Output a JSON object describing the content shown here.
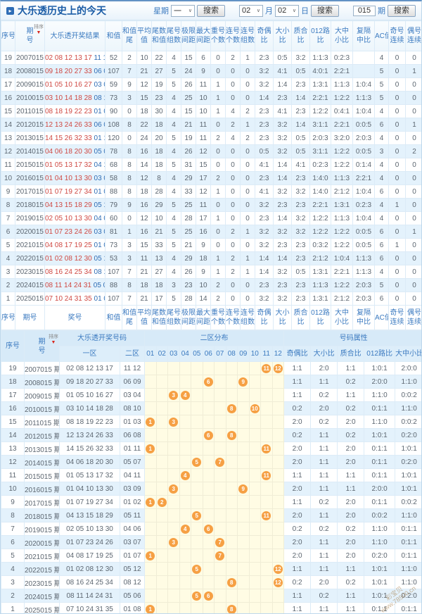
{
  "header": {
    "title": "大乐透历史上的今天",
    "week_label": "星期",
    "week_value": "一",
    "month_value": "02",
    "month_label": "月",
    "day_value": "02",
    "day_label": "日",
    "issue_value": "015",
    "issue_label": "期",
    "search_label": "搜索"
  },
  "sort_label": "排序",
  "table1": {
    "columns": [
      [
        "序号",
        ""
      ],
      [
        "期",
        "号"
      ],
      [
        "大乐透开奖结果",
        ""
      ],
      [
        "和值",
        ""
      ],
      [
        "和值",
        "尾"
      ],
      [
        "平均",
        "值"
      ],
      [
        "尾数",
        "和值"
      ],
      [
        "尾号",
        "组数"
      ],
      [
        "极限",
        "间距"
      ],
      [
        "最大",
        "间距"
      ],
      [
        "重号",
        "个数"
      ],
      [
        "连号",
        "个数"
      ],
      [
        "连号",
        "组数"
      ],
      [
        "奇偶",
        "比"
      ],
      [
        "大小",
        "比"
      ],
      [
        "质合",
        "比"
      ],
      [
        "012路",
        "比"
      ],
      [
        "大中",
        "小比"
      ],
      [
        "复隔",
        "中比"
      ],
      [
        "AC值",
        ""
      ],
      [
        "奇号",
        "连续"
      ],
      [
        "偶号",
        "连续"
      ]
    ],
    "footer_columns": [
      [
        "序号",
        ""
      ],
      [
        "期号",
        ""
      ],
      [
        "奖号",
        ""
      ],
      [
        "和值",
        ""
      ],
      [
        "和值",
        "尾"
      ],
      [
        "平均",
        "值"
      ],
      [
        "尾数",
        "和值"
      ],
      [
        "尾号",
        "组数"
      ],
      [
        "极限",
        "间距"
      ],
      [
        "最大",
        "间距"
      ],
      [
        "重号",
        "个数"
      ],
      [
        "连号",
        "个数"
      ],
      [
        "连号",
        "组数"
      ],
      [
        "奇偶",
        "比"
      ],
      [
        "大小",
        "比"
      ],
      [
        "质合",
        "比"
      ],
      [
        "012路",
        "比"
      ],
      [
        "大中",
        "小比"
      ],
      [
        "复隔",
        "中比"
      ],
      [
        "AC值",
        ""
      ],
      [
        "奇号",
        "连续"
      ],
      [
        "偶号",
        "连续"
      ]
    ],
    "rows": [
      {
        "seq": "19",
        "period": "2007015",
        "front": "02 08 12 13 17",
        "back": "11 12",
        "vals": [
          "52",
          "2",
          "10",
          "22",
          "4",
          "15",
          "6",
          "0",
          "2",
          "1",
          "2:3",
          "0:5",
          "3:2",
          "1:1:3",
          "0:2:3",
          "",
          "4",
          "0",
          "0"
        ]
      },
      {
        "seq": "18",
        "period": "2008015",
        "front": "09 18 20 27 33",
        "back": "06 09",
        "vals": [
          "107",
          "7",
          "21",
          "27",
          "5",
          "24",
          "9",
          "0",
          "0",
          "0",
          "3:2",
          "4:1",
          "0:5",
          "4:0:1",
          "2:2:1",
          "",
          "5",
          "0",
          "1"
        ]
      },
      {
        "seq": "17",
        "period": "2009015",
        "front": "01 05 10 16 27",
        "back": "03 04",
        "vals": [
          "59",
          "9",
          "12",
          "19",
          "5",
          "26",
          "11",
          "1",
          "0",
          "0",
          "3:2",
          "1:4",
          "2:3",
          "1:3:1",
          "1:1:3",
          "1:0:4",
          "5",
          "0",
          "0"
        ]
      },
      {
        "seq": "16",
        "period": "2010015",
        "front": "03 10 14 18 28",
        "back": "08 10",
        "vals": [
          "73",
          "3",
          "15",
          "23",
          "4",
          "25",
          "10",
          "1",
          "0",
          "0",
          "1:4",
          "2:3",
          "1:4",
          "2:2:1",
          "1:2:2",
          "1:1:3",
          "5",
          "0",
          "0"
        ]
      },
      {
        "seq": "15",
        "period": "2011015",
        "front": "08 18 19 22 23",
        "back": "01 03",
        "vals": [
          "90",
          "0",
          "18",
          "30",
          "4",
          "15",
          "10",
          "1",
          "4",
          "2",
          "2:3",
          "4:1",
          "2:3",
          "1:2:2",
          "0:4:1",
          "1:0:4",
          "4",
          "0",
          "0"
        ]
      },
      {
        "seq": "14",
        "period": "2012015",
        "front": "12 13 24 26 33",
        "back": "06 08",
        "vals": [
          "108",
          "8",
          "22",
          "18",
          "4",
          "21",
          "11",
          "0",
          "2",
          "1",
          "2:3",
          "3:2",
          "1:4",
          "3:1:1",
          "2:2:1",
          "0:0:5",
          "6",
          "0",
          "1"
        ]
      },
      {
        "seq": "13",
        "period": "2013015",
        "front": "14 15 26 32 33",
        "back": "01 11",
        "vals": [
          "120",
          "0",
          "24",
          "20",
          "5",
          "19",
          "11",
          "2",
          "4",
          "2",
          "2:3",
          "3:2",
          "0:5",
          "2:0:3",
          "3:2:0",
          "2:0:3",
          "4",
          "0",
          "0"
        ]
      },
      {
        "seq": "12",
        "period": "2014015",
        "front": "04 06 18 20 30",
        "back": "05 07",
        "vals": [
          "78",
          "8",
          "16",
          "18",
          "4",
          "26",
          "12",
          "0",
          "0",
          "0",
          "0:5",
          "3:2",
          "0:5",
          "3:1:1",
          "1:2:2",
          "0:0:5",
          "3",
          "0",
          "2"
        ]
      },
      {
        "seq": "11",
        "period": "2015015",
        "front": "01 05 13 17 32",
        "back": "04 11",
        "vals": [
          "68",
          "8",
          "14",
          "18",
          "5",
          "31",
          "15",
          "0",
          "0",
          "0",
          "4:1",
          "1:4",
          "4:1",
          "0:2:3",
          "1:2:2",
          "0:1:4",
          "4",
          "0",
          "0"
        ]
      },
      {
        "seq": "10",
        "period": "2016015",
        "front": "01 04 10 13 30",
        "back": "03 09",
        "vals": [
          "58",
          "8",
          "12",
          "8",
          "4",
          "29",
          "17",
          "2",
          "0",
          "0",
          "2:3",
          "1:4",
          "2:3",
          "1:4:0",
          "1:1:3",
          "2:2:1",
          "4",
          "0",
          "0"
        ]
      },
      {
        "seq": "9",
        "period": "2017015",
        "front": "01 07 19 27 34",
        "back": "01 02",
        "vals": [
          "88",
          "8",
          "18",
          "28",
          "4",
          "33",
          "12",
          "1",
          "0",
          "0",
          "4:1",
          "3:2",
          "3:2",
          "1:4:0",
          "2:1:2",
          "1:0:4",
          "6",
          "0",
          "0"
        ]
      },
      {
        "seq": "8",
        "period": "2018015",
        "front": "04 13 15 18 29",
        "back": "05 11",
        "vals": [
          "79",
          "9",
          "16",
          "29",
          "5",
          "25",
          "11",
          "0",
          "0",
          "0",
          "3:2",
          "2:3",
          "2:3",
          "2:2:1",
          "1:3:1",
          "0:2:3",
          "4",
          "1",
          "0"
        ]
      },
      {
        "seq": "7",
        "period": "2019015",
        "front": "02 05 10 13 30",
        "back": "04 06",
        "vals": [
          "60",
          "0",
          "12",
          "10",
          "4",
          "28",
          "17",
          "1",
          "0",
          "0",
          "2:3",
          "1:4",
          "3:2",
          "1:2:2",
          "1:1:3",
          "1:0:4",
          "4",
          "0",
          "0"
        ]
      },
      {
        "seq": "6",
        "period": "2020015",
        "front": "01 07 23 24 26",
        "back": "03 07",
        "vals": [
          "81",
          "1",
          "16",
          "21",
          "5",
          "25",
          "16",
          "0",
          "2",
          "1",
          "3:2",
          "3:2",
          "3:2",
          "1:2:2",
          "1:2:2",
          "0:0:5",
          "6",
          "0",
          "1"
        ]
      },
      {
        "seq": "5",
        "period": "2021015",
        "front": "04 08 17 19 25",
        "back": "01 07",
        "vals": [
          "73",
          "3",
          "15",
          "33",
          "5",
          "21",
          "9",
          "0",
          "0",
          "0",
          "3:2",
          "2:3",
          "2:3",
          "0:3:2",
          "1:2:2",
          "0:0:5",
          "6",
          "1",
          "0"
        ]
      },
      {
        "seq": "4",
        "period": "2022015",
        "front": "01 02 08 12 30",
        "back": "05 12",
        "vals": [
          "53",
          "3",
          "11",
          "13",
          "4",
          "29",
          "18",
          "1",
          "2",
          "1",
          "1:4",
          "1:4",
          "2:3",
          "2:1:2",
          "1:0:4",
          "1:1:3",
          "6",
          "0",
          "0"
        ]
      },
      {
        "seq": "3",
        "period": "2023015",
        "front": "08 16 24 25 34",
        "back": "08 12",
        "vals": [
          "107",
          "7",
          "21",
          "27",
          "4",
          "26",
          "9",
          "1",
          "2",
          "1",
          "1:4",
          "3:2",
          "0:5",
          "1:3:1",
          "2:2:1",
          "1:1:3",
          "4",
          "0",
          "0"
        ]
      },
      {
        "seq": "2",
        "period": "2024015",
        "front": "08 11 14 24 31",
        "back": "05 06",
        "vals": [
          "88",
          "8",
          "18",
          "18",
          "3",
          "23",
          "10",
          "2",
          "0",
          "0",
          "2:3",
          "2:3",
          "2:3",
          "1:1:3",
          "1:2:2",
          "2:0:3",
          "5",
          "0",
          "0"
        ]
      },
      {
        "seq": "1",
        "period": "2025015",
        "front": "07 10 24 31 35",
        "back": "01 08",
        "vals": [
          "107",
          "7",
          "21",
          "17",
          "5",
          "28",
          "14",
          "2",
          "0",
          "0",
          "3:2",
          "3:2",
          "2:3",
          "1:3:1",
          "2:1:2",
          "2:0:3",
          "6",
          "0",
          "0"
        ]
      }
    ]
  },
  "table2": {
    "group_headers": {
      "seq": "序号",
      "period": "期号",
      "result": "大乐透开奖号码",
      "dist": "二区分布",
      "props": "号码属性"
    },
    "zone1_label": "一区",
    "zone2_label": "二区",
    "dist_labels": [
      "01",
      "02",
      "03",
      "04",
      "05",
      "06",
      "07",
      "08",
      "09",
      "10",
      "11",
      "12"
    ],
    "prop_labels": [
      "奇偶比",
      "大小比",
      "质合比",
      "012路比",
      "大中小比"
    ],
    "period_suffix": "期",
    "rows": [
      {
        "seq": "19",
        "period": "2007015",
        "zone1": "02 08 12 13 17",
        "zone2": "11 12",
        "balls": [
          11,
          12
        ],
        "props": [
          "1:1",
          "2:0",
          "1:1",
          "1:0:1",
          "2:0:0"
        ]
      },
      {
        "seq": "18",
        "period": "2008015",
        "zone1": "09 18 20 27 33",
        "zone2": "06 09",
        "balls": [
          6,
          9
        ],
        "props": [
          "1:1",
          "1:1",
          "0:2",
          "2:0:0",
          "1:1:0"
        ]
      },
      {
        "seq": "17",
        "period": "2009015",
        "zone1": "01 05 10 16 27",
        "zone2": "03 04",
        "balls": [
          3,
          4
        ],
        "props": [
          "1:1",
          "0:2",
          "1:1",
          "1:1:0",
          "0:0:2"
        ]
      },
      {
        "seq": "16",
        "period": "2010015",
        "zone1": "03 10 14 18 28",
        "zone2": "08 10",
        "balls": [
          8,
          10
        ],
        "props": [
          "0:2",
          "2:0",
          "0:2",
          "0:1:1",
          "1:1:0"
        ]
      },
      {
        "seq": "15",
        "period": "2011015",
        "zone1": "08 18 19 22 23",
        "zone2": "01 03",
        "balls": [
          1,
          3
        ],
        "props": [
          "2:0",
          "0:2",
          "2:0",
          "1:1:0",
          "0:0:2"
        ]
      },
      {
        "seq": "14",
        "period": "2012015",
        "zone1": "12 13 24 26 33",
        "zone2": "06 08",
        "balls": [
          6,
          8
        ],
        "props": [
          "0:2",
          "1:1",
          "0:2",
          "1:0:1",
          "0:2:0"
        ]
      },
      {
        "seq": "13",
        "period": "2013015",
        "zone1": "14 15 26 32 33",
        "zone2": "01 11",
        "balls": [
          1,
          11
        ],
        "props": [
          "2:0",
          "1:1",
          "2:0",
          "0:1:1",
          "1:0:1"
        ]
      },
      {
        "seq": "12",
        "period": "2014015",
        "zone1": "04 06 18 20 30",
        "zone2": "05 07",
        "balls": [
          5,
          7
        ],
        "props": [
          "2:0",
          "1:1",
          "2:0",
          "0:1:1",
          "0:2:0"
        ]
      },
      {
        "seq": "11",
        "period": "2015015",
        "zone1": "01 05 13 17 32",
        "zone2": "04 11",
        "balls": [
          4,
          11
        ],
        "props": [
          "1:1",
          "1:1",
          "1:1",
          "0:1:1",
          "1:0:1"
        ]
      },
      {
        "seq": "10",
        "period": "2016015",
        "zone1": "01 04 10 13 30",
        "zone2": "03 09",
        "balls": [
          3,
          9
        ],
        "props": [
          "2:0",
          "1:1",
          "1:1",
          "2:0:0",
          "1:0:1"
        ]
      },
      {
        "seq": "9",
        "period": "2017015",
        "zone1": "01 07 19 27 34",
        "zone2": "01 02",
        "balls": [
          1,
          2
        ],
        "props": [
          "1:1",
          "0:2",
          "2:0",
          "0:1:1",
          "0:0:2"
        ]
      },
      {
        "seq": "8",
        "period": "2018015",
        "zone1": "04 13 15 18 29",
        "zone2": "05 11",
        "balls": [
          5,
          11
        ],
        "props": [
          "2:0",
          "1:1",
          "2:0",
          "0:0:2",
          "1:1:0"
        ]
      },
      {
        "seq": "7",
        "period": "2019015",
        "zone1": "02 05 10 13 30",
        "zone2": "04 06",
        "balls": [
          4,
          6
        ],
        "props": [
          "0:2",
          "0:2",
          "0:2",
          "1:1:0",
          "0:1:1"
        ]
      },
      {
        "seq": "6",
        "period": "2020015",
        "zone1": "01 07 23 24 26",
        "zone2": "03 07",
        "balls": [
          3,
          7
        ],
        "props": [
          "2:0",
          "1:1",
          "2:0",
          "1:1:0",
          "0:1:1"
        ]
      },
      {
        "seq": "5",
        "period": "2021015",
        "zone1": "04 08 17 19 25",
        "zone2": "01 07",
        "balls": [
          1,
          7
        ],
        "props": [
          "2:0",
          "1:1",
          "2:0",
          "0:2:0",
          "0:1:1"
        ]
      },
      {
        "seq": "4",
        "period": "2022015",
        "zone1": "01 02 08 12 30",
        "zone2": "05 12",
        "balls": [
          5,
          12
        ],
        "props": [
          "1:1",
          "1:1",
          "1:1",
          "1:0:1",
          "1:1:0"
        ]
      },
      {
        "seq": "3",
        "period": "2023015",
        "zone1": "08 16 24 25 34",
        "zone2": "08 12",
        "balls": [
          8,
          12
        ],
        "props": [
          "0:2",
          "2:0",
          "0:2",
          "1:0:1",
          "1:1:0"
        ]
      },
      {
        "seq": "2",
        "period": "2024015",
        "zone1": "08 11 14 24 31",
        "zone2": "05 06",
        "balls": [
          5,
          6
        ],
        "props": [
          "1:1",
          "0:2",
          "1:1",
          "1:0:1",
          "0:2:0"
        ]
      },
      {
        "seq": "1",
        "period": "2025015",
        "zone1": "07 10 24 31 35",
        "zone2": "01 08",
        "balls": [
          1,
          8
        ],
        "props": [
          "1:1",
          "1:1",
          "1:1",
          "0:1:1",
          "0:1:1"
        ]
      }
    ]
  },
  "watermark": {
    "line1": "彩宝贝",
    "line2": "www.78500.cn"
  }
}
